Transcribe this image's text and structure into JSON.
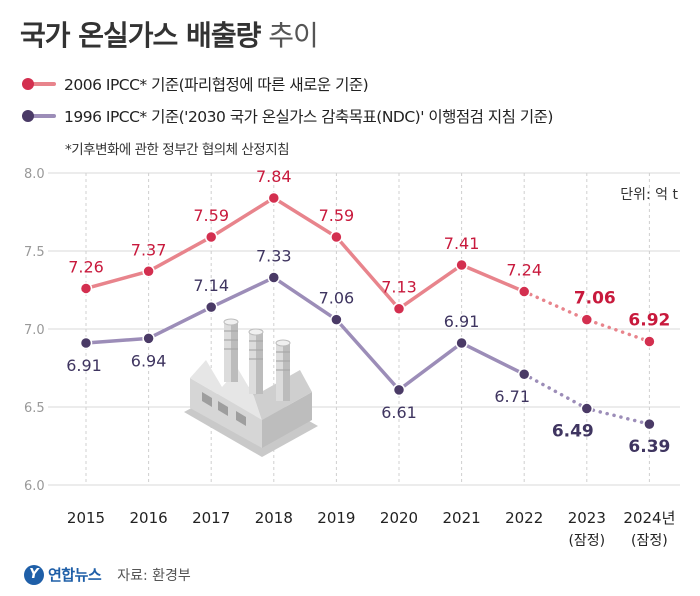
{
  "title": {
    "bold": "국가 온실가스 배출량",
    "light": " 추이"
  },
  "legend": [
    {
      "label": "2006 IPCC* 기준(파리협정에 따른 새로운 기준)",
      "color": "#e8848c"
    },
    {
      "label": "1996 IPCC* 기준('2030 국가 온실가스 감축목표(NDC)' 이행점검 지침 기준)",
      "color": "#9c8db8"
    }
  ],
  "note": "*기후변화에 관한 정부간 협의체 산정지침",
  "footer": {
    "logo_mark": "Y",
    "logo": "연합뉴스",
    "source": "자료: 환경부"
  },
  "chart_data": {
    "type": "line",
    "unit": "단위: 억 t",
    "categories": [
      "2015",
      "2016",
      "2017",
      "2018",
      "2019",
      "2020",
      "2021",
      "2022",
      "2023",
      "2024년"
    ],
    "category_sublabels": [
      "",
      "",
      "",
      "",
      "",
      "",
      "",
      "",
      "(잠정)",
      "(잠정)"
    ],
    "ylim": [
      6.0,
      8.0
    ],
    "yticks": [
      "6.0",
      "6.5",
      "7.0",
      "7.5",
      "8.0"
    ],
    "ytick_values": [
      6.0,
      6.5,
      7.0,
      7.5,
      8.0
    ],
    "provisional_from_index": 7,
    "series": [
      {
        "name": "2006 IPCC* 기준",
        "values": [
          7.26,
          7.37,
          7.59,
          7.84,
          7.59,
          7.13,
          7.41,
          7.24,
          7.06,
          6.92
        ],
        "labels": [
          "7.26",
          "7.37",
          "7.59",
          "7.84",
          "7.59",
          "7.13",
          "7.41",
          "7.24",
          "7.06",
          "6.92"
        ],
        "line_color": "#e8848c",
        "marker_color": "#d32f4f",
        "label_color": "#c8193c",
        "label_position": "above"
      },
      {
        "name": "1996 IPCC* 기준",
        "values": [
          6.91,
          6.94,
          7.14,
          7.33,
          7.06,
          6.61,
          6.91,
          6.71,
          6.49,
          6.39
        ],
        "labels": [
          "6.91",
          "6.94",
          "7.14",
          "7.33",
          "7.06",
          "6.61",
          "6.91",
          "6.71",
          "6.49",
          "6.39"
        ],
        "line_color": "#9c8db8",
        "marker_color": "#4a3a66",
        "label_color": "#3f3560",
        "label_position": "mixed"
      }
    ]
  }
}
